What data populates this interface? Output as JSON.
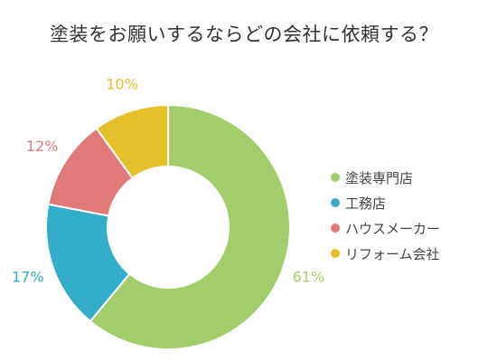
{
  "chart_data": {
    "type": "pie",
    "title": "塗装をお願いするならどの会社に依頼する？",
    "categories": [
      "塗装専門店",
      "工務店",
      "ハウスメーカー",
      "リフォーム会社"
    ],
    "values": [
      61,
      17,
      12,
      10
    ],
    "value_labels": [
      "61%",
      "17%",
      "12%",
      "10%"
    ],
    "colors": [
      "#a3cd6a",
      "#33adc9",
      "#e07a7a",
      "#e6c02a"
    ],
    "donut": true,
    "legend_position": "right"
  }
}
